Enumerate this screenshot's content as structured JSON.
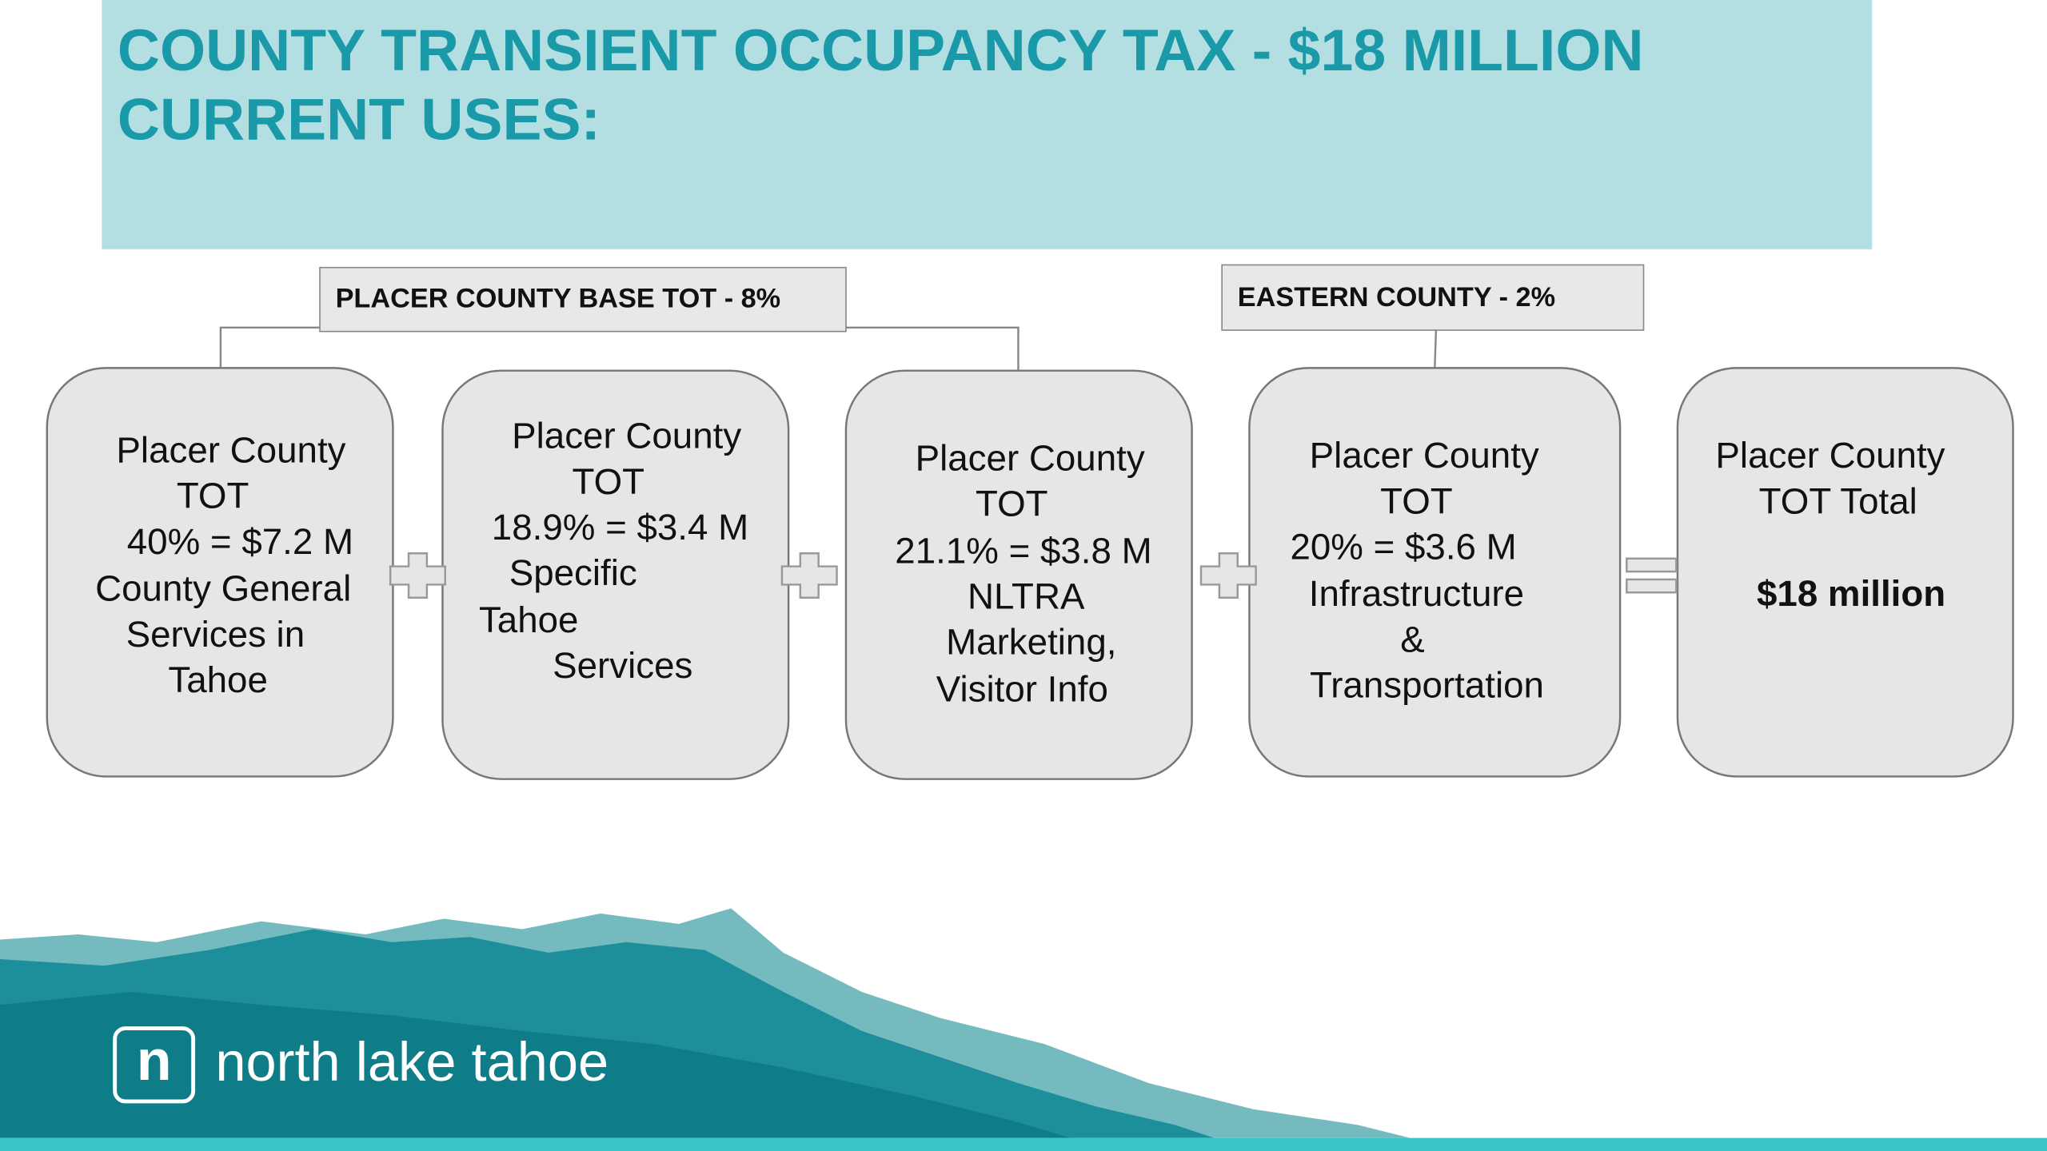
{
  "header": {
    "title_lines": [
      "COUNTY TRANSIENT OCCUPANCY TAX - $18 MILLION",
      "CURRENT USES:"
    ]
  },
  "groups": [
    "PLACER COUNTY BASE TOT - 8%",
    "EASTERN COUNTY - 2%"
  ],
  "boxes": [
    {
      "lines": [
        "Placer County",
        "TOT",
        "40% = $7.2 M",
        "County General",
        "Services in",
        "Tahoe"
      ]
    },
    {
      "lines": [
        "Placer County",
        "TOT",
        "18.9% = $3.4 M",
        "Specific",
        "Tahoe",
        "Services"
      ]
    },
    {
      "lines": [
        "Placer County",
        "TOT",
        "21.1% = $3.8 M",
        "NLTRA",
        "Marketing,",
        "Visitor Info"
      ]
    },
    {
      "lines": [
        "Placer County",
        "TOT",
        "20% = $3.6 M",
        "Infrastructure",
        "&",
        "Transportation"
      ]
    },
    {
      "lines": [
        "Placer County",
        "TOT Total",
        "$18 million"
      ]
    }
  ],
  "logo": {
    "mark": "n",
    "text": "north lake tahoe"
  }
}
